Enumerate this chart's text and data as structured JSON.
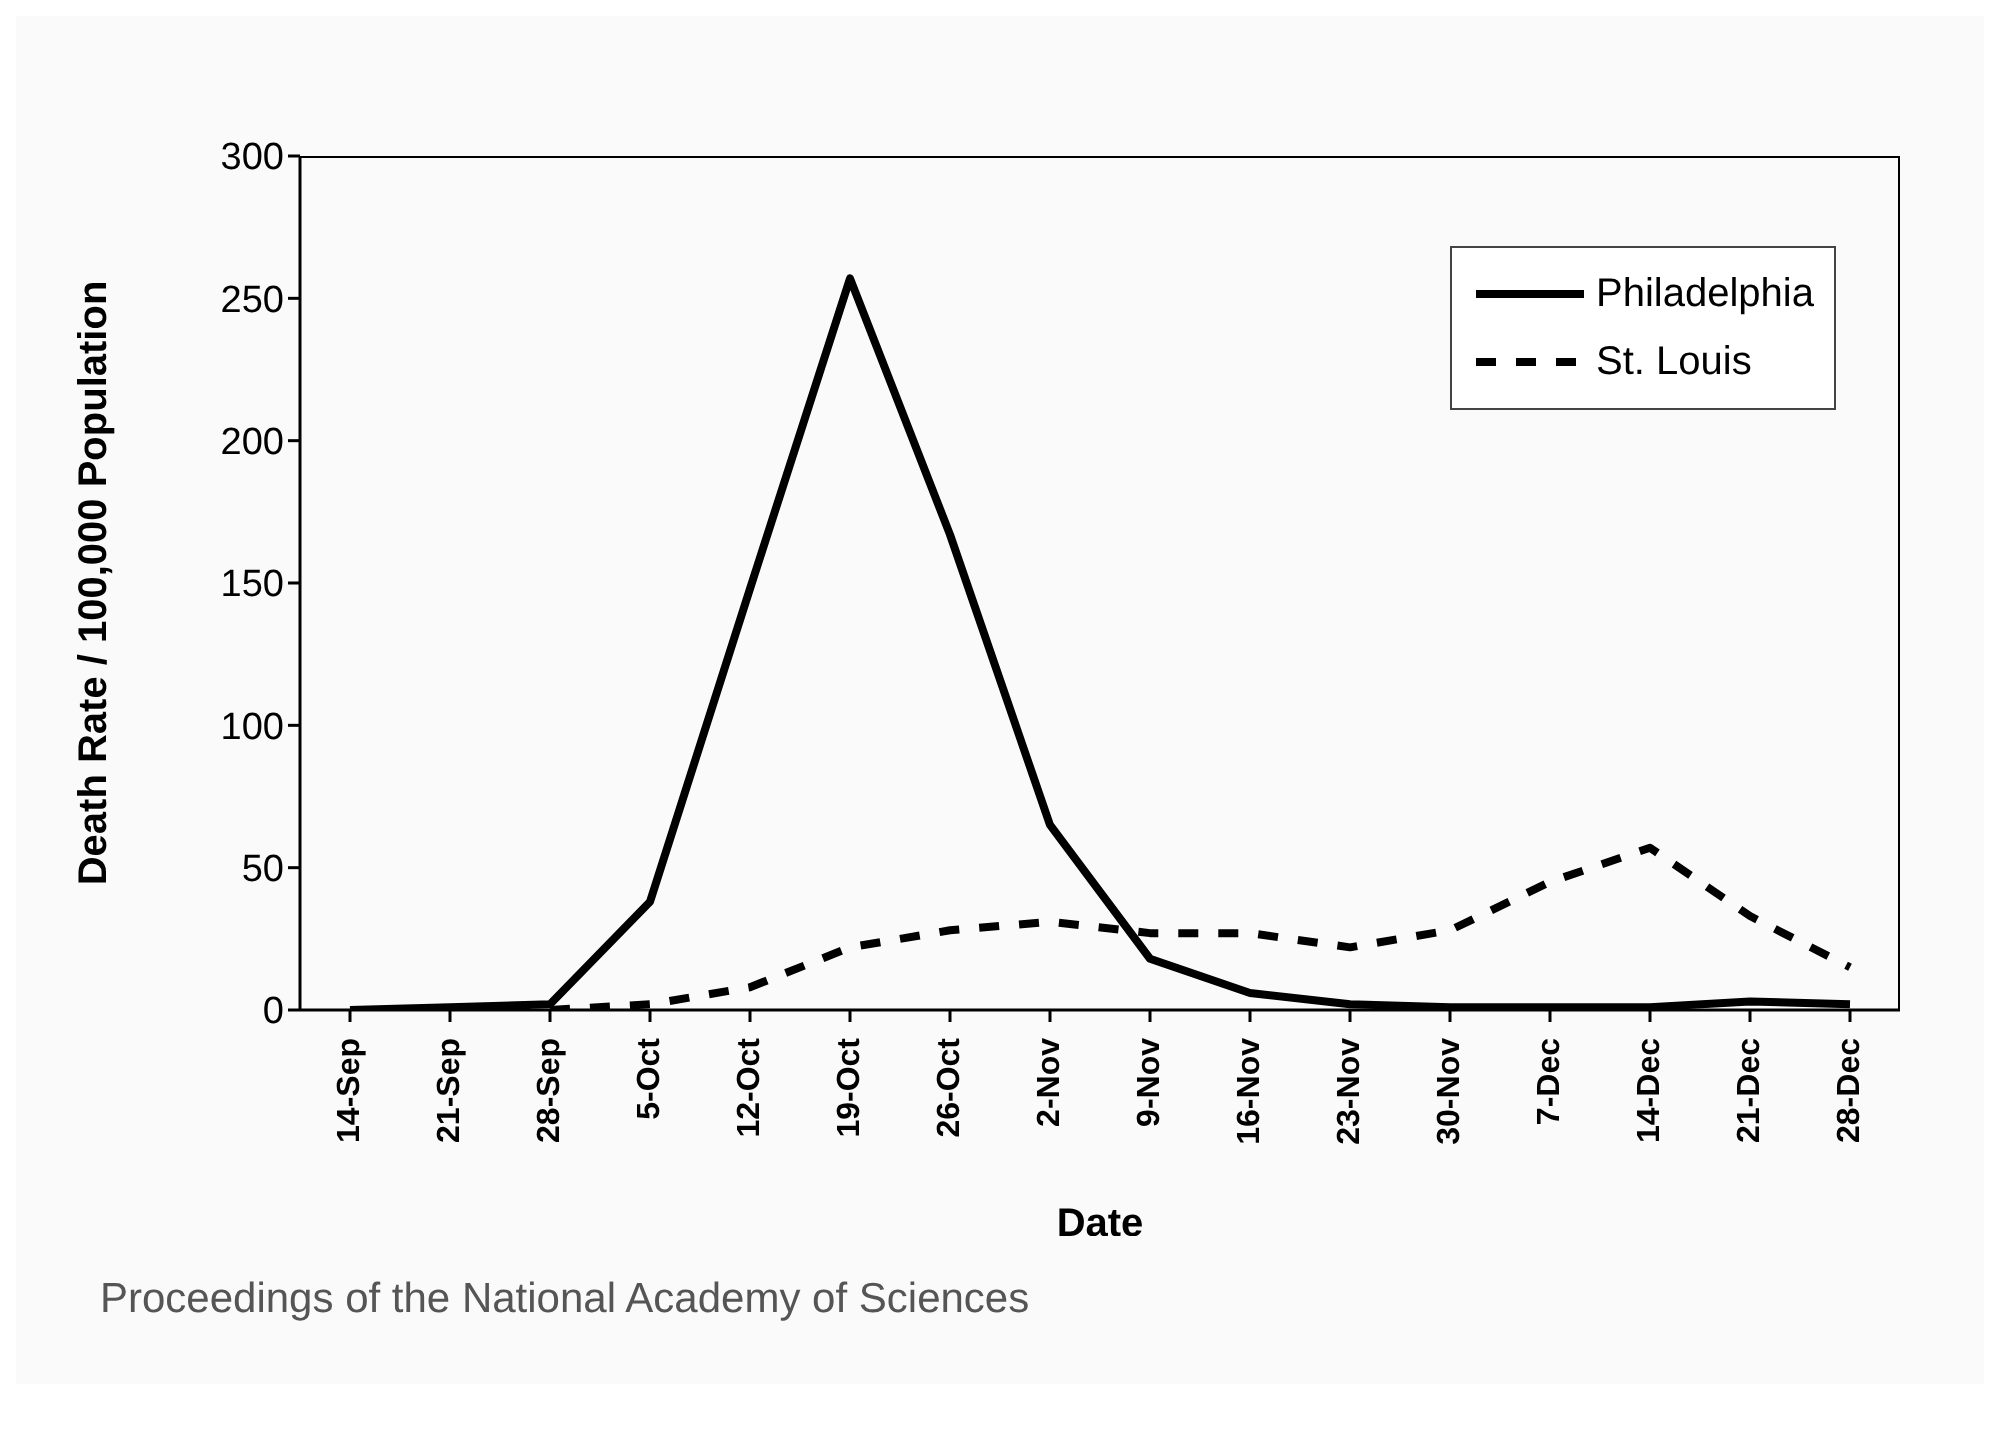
{
  "chart_data": {
    "type": "line",
    "xlabel": "Date",
    "ylabel": "Death Rate / 100,000 Population",
    "categories": [
      "14-Sep",
      "21-Sep",
      "28-Sep",
      "5-Oct",
      "12-Oct",
      "19-Oct",
      "26-Oct",
      "2-Nov",
      "9-Nov",
      "16-Nov",
      "23-Nov",
      "30-Nov",
      "7-Dec",
      "14-Dec",
      "21-Dec",
      "28-Dec"
    ],
    "series": [
      {
        "name": "Philadelphia",
        "color": "#000000",
        "line_style": "solid",
        "values": [
          0,
          1,
          2,
          38,
          148,
          257,
          167,
          65,
          18,
          6,
          2,
          1,
          1,
          1,
          3,
          2
        ]
      },
      {
        "name": "St. Louis",
        "color": "#000000",
        "line_style": "dashed",
        "values": [
          0,
          0,
          0,
          2,
          8,
          22,
          28,
          31,
          27,
          27,
          22,
          28,
          45,
          57,
          33,
          15
        ]
      }
    ],
    "ylim": [
      0,
      300
    ],
    "yticks": [
      0,
      50,
      100,
      150,
      200,
      250,
      300
    ],
    "grid": false,
    "legend": "top right",
    "marker": "none",
    "annotations": [
      "Proceedings of the National Academy of Sciences"
    ]
  }
}
